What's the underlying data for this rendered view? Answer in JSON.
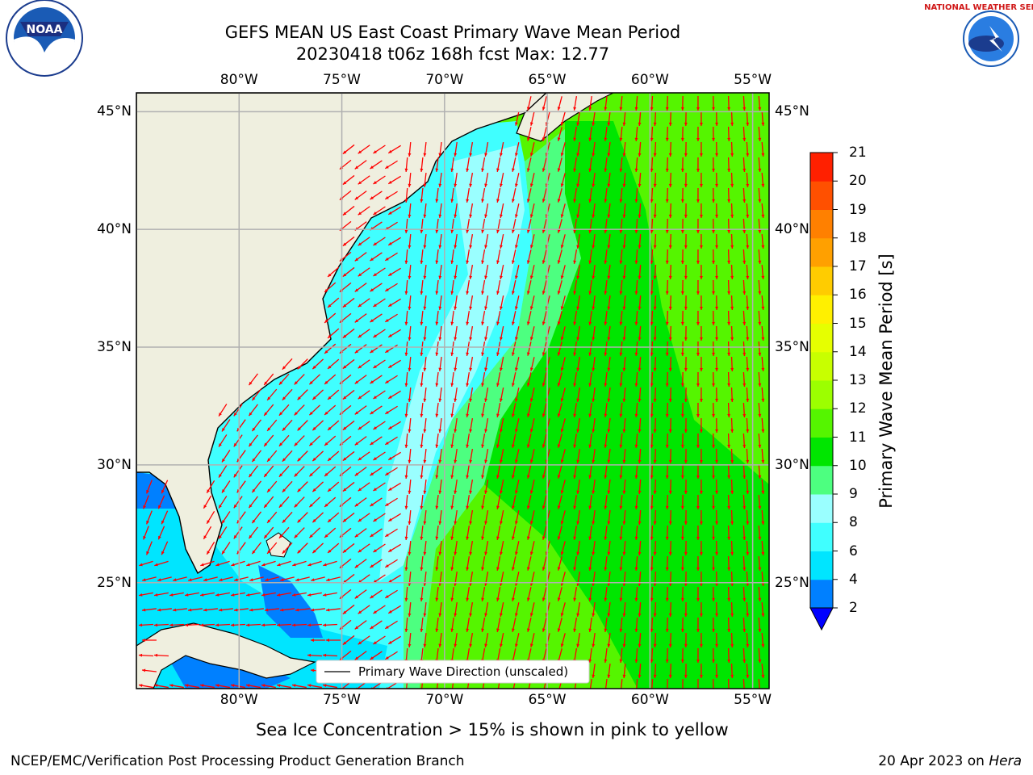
{
  "title_line1": "GEFS MEAN US East Coast Primary Wave Mean Period",
  "title_line2": "20230418 t06z 168h fcst   Max: 12.77",
  "map": {
    "lon_range": [
      -85,
      -54.2
    ],
    "lat_range": [
      20.5,
      45.8
    ],
    "lon_ticks": [
      {
        "lon": -80,
        "label": "80°W"
      },
      {
        "lon": -75,
        "label": "75°W"
      },
      {
        "lon": -70,
        "label": "70°W"
      },
      {
        "lon": -65,
        "label": "65°W"
      },
      {
        "lon": -60,
        "label": "60°W"
      },
      {
        "lon": -55,
        "label": "55°W"
      }
    ],
    "lat_ticks": [
      {
        "lat": 45,
        "label": "45°N"
      },
      {
        "lat": 40,
        "label": "40°N"
      },
      {
        "lat": 35,
        "label": "35°N"
      },
      {
        "lat": 30,
        "label": "30°N"
      },
      {
        "lat": 25,
        "label": "25°N"
      }
    ],
    "gridlines": true,
    "land_color": "#efefdf",
    "arrow_color": "#ff0000",
    "legend_label": "Primary Wave Direction (unscaled)"
  },
  "colorbar": {
    "label": "Primary Wave Mean Period [s]",
    "levels": [
      2,
      4,
      6,
      8,
      9,
      10,
      11,
      12,
      13,
      14,
      15,
      16,
      17,
      18,
      19,
      20,
      21
    ],
    "colors": [
      "#0080ff",
      "#00e5ff",
      "#40ffff",
      "#9affff",
      "#4dff80",
      "#00e600",
      "#55f500",
      "#9cff00",
      "#c8ff00",
      "#e6ff00",
      "#fff000",
      "#ffcc00",
      "#ffa000",
      "#ff8000",
      "#ff5000",
      "#ff2000"
    ],
    "under_color": "#0000ff",
    "tick_labels": [
      "2",
      "4",
      "6",
      "8",
      "9",
      "10",
      "11",
      "12",
      "13",
      "14",
      "15",
      "16",
      "17",
      "18",
      "19",
      "20",
      "21"
    ]
  },
  "note": "Sea Ice Concentration > 15% is shown in pink to yellow",
  "footer_left": "NCEP/EMC/Verification Post Processing Product Generation Branch",
  "footer_right_date": "20 Apr 2023 on ",
  "footer_right_machine": "Hera",
  "logos": {
    "noaa_text": "NOAA",
    "nws_text": "NATIONAL WEATHER SERVICE"
  }
}
